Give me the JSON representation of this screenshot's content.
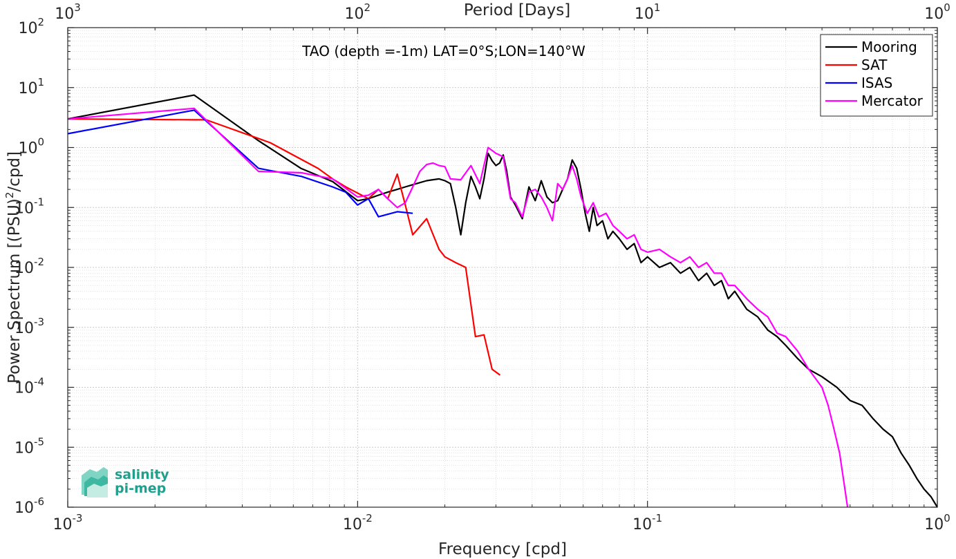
{
  "chart_data": {
    "type": "line",
    "xscale": "log",
    "yscale": "log",
    "xlim": [
      0.001,
      1
    ],
    "ylim": [
      1e-06,
      100
    ],
    "xlabel": "Frequency [cpd]",
    "ylabel": "Power Spectrum [(PSU)²/cpd]",
    "top_axis_label": "Period [Days]",
    "annotation": "TAO (depth =-1m) LAT=0°S;LON=140°W",
    "grid": true,
    "legend_position": "top-right",
    "x_ticks": [
      {
        "value": 0.001,
        "base": "10",
        "exp": "-3"
      },
      {
        "value": 0.01,
        "base": "10",
        "exp": "-2"
      },
      {
        "value": 0.1,
        "base": "10",
        "exp": "-1"
      },
      {
        "value": 1,
        "base": "10",
        "exp": "0"
      }
    ],
    "top_ticks": [
      {
        "value": 0.001,
        "base": "10",
        "exp": "3"
      },
      {
        "value": 0.01,
        "base": "10",
        "exp": "2"
      },
      {
        "value": 0.1,
        "base": "10",
        "exp": "1"
      },
      {
        "value": 1,
        "base": "10",
        "exp": "0"
      }
    ],
    "y_ticks": [
      {
        "value": 100,
        "base": "10",
        "exp": "2"
      },
      {
        "value": 10,
        "base": "10",
        "exp": "1"
      },
      {
        "value": 1,
        "base": "10",
        "exp": "0"
      },
      {
        "value": 0.1,
        "base": "10",
        "exp": "-1"
      },
      {
        "value": 0.01,
        "base": "10",
        "exp": "-2"
      },
      {
        "value": 0.001,
        "base": "10",
        "exp": "-3"
      },
      {
        "value": 0.0001,
        "base": "10",
        "exp": "-4"
      },
      {
        "value": 1e-05,
        "base": "10",
        "exp": "-5"
      },
      {
        "value": 1e-06,
        "base": "10",
        "exp": "-6"
      }
    ],
    "series": [
      {
        "name": "Mooring",
        "color": "#000000",
        "points": [
          [
            0.001,
            3.0
          ],
          [
            0.00273,
            7.5
          ],
          [
            0.00455,
            1.3
          ],
          [
            0.00637,
            0.45
          ],
          [
            0.0082,
            0.27
          ],
          [
            0.01,
            0.13
          ],
          [
            0.0109,
            0.14
          ],
          [
            0.0118,
            0.16
          ],
          [
            0.0127,
            0.18
          ],
          [
            0.0137,
            0.2
          ],
          [
            0.0146,
            0.22
          ],
          [
            0.0155,
            0.24
          ],
          [
            0.0164,
            0.26
          ],
          [
            0.0173,
            0.28
          ],
          [
            0.0182,
            0.29
          ],
          [
            0.0191,
            0.3
          ],
          [
            0.02,
            0.28
          ],
          [
            0.0209,
            0.25
          ],
          [
            0.0218,
            0.1
          ],
          [
            0.0227,
            0.035
          ],
          [
            0.0236,
            0.12
          ],
          [
            0.0246,
            0.33
          ],
          [
            0.0255,
            0.22
          ],
          [
            0.0264,
            0.14
          ],
          [
            0.0273,
            0.3
          ],
          [
            0.0282,
            0.8
          ],
          [
            0.0291,
            0.6
          ],
          [
            0.03,
            0.5
          ],
          [
            0.0309,
            0.55
          ],
          [
            0.0318,
            0.75
          ],
          [
            0.0327,
            0.4
          ],
          [
            0.0337,
            0.15
          ],
          [
            0.035,
            0.11
          ],
          [
            0.037,
            0.065
          ],
          [
            0.039,
            0.22
          ],
          [
            0.041,
            0.13
          ],
          [
            0.043,
            0.28
          ],
          [
            0.045,
            0.15
          ],
          [
            0.047,
            0.12
          ],
          [
            0.049,
            0.13
          ],
          [
            0.051,
            0.2
          ],
          [
            0.053,
            0.3
          ],
          [
            0.055,
            0.62
          ],
          [
            0.057,
            0.45
          ],
          [
            0.059,
            0.2
          ],
          [
            0.061,
            0.08
          ],
          [
            0.063,
            0.04
          ],
          [
            0.065,
            0.1
          ],
          [
            0.067,
            0.05
          ],
          [
            0.07,
            0.06
          ],
          [
            0.073,
            0.03
          ],
          [
            0.076,
            0.04
          ],
          [
            0.08,
            0.03
          ],
          [
            0.085,
            0.02
          ],
          [
            0.09,
            0.025
          ],
          [
            0.095,
            0.012
          ],
          [
            0.1,
            0.015
          ],
          [
            0.11,
            0.01
          ],
          [
            0.12,
            0.012
          ],
          [
            0.13,
            0.008
          ],
          [
            0.14,
            0.01
          ],
          [
            0.15,
            0.006
          ],
          [
            0.16,
            0.008
          ],
          [
            0.17,
            0.005
          ],
          [
            0.18,
            0.006
          ],
          [
            0.19,
            0.003
          ],
          [
            0.2,
            0.004
          ],
          [
            0.22,
            0.002
          ],
          [
            0.24,
            0.0015
          ],
          [
            0.26,
            0.0009
          ],
          [
            0.28,
            0.0007
          ],
          [
            0.3,
            0.0005
          ],
          [
            0.33,
            0.0003
          ],
          [
            0.36,
            0.0002
          ],
          [
            0.4,
            0.00015
          ],
          [
            0.45,
            0.0001
          ],
          [
            0.5,
            6e-05
          ],
          [
            0.55,
            5e-05
          ],
          [
            0.6,
            3e-05
          ],
          [
            0.65,
            2e-05
          ],
          [
            0.7,
            1.5e-05
          ],
          [
            0.75,
            8e-06
          ],
          [
            0.8,
            5e-06
          ],
          [
            0.85,
            3e-06
          ],
          [
            0.9,
            2e-06
          ],
          [
            0.95,
            1.5e-06
          ],
          [
            1.0,
            1e-06
          ]
        ]
      },
      {
        "name": "SAT",
        "color": "#ff0000",
        "points": [
          [
            0.001,
            3.0
          ],
          [
            0.00273,
            2.9
          ],
          [
            0.003,
            2.9
          ],
          [
            0.005,
            1.2
          ],
          [
            0.0073,
            0.45
          ],
          [
            0.0082,
            0.3
          ],
          [
            0.0091,
            0.22
          ],
          [
            0.0109,
            0.14
          ],
          [
            0.0118,
            0.2
          ],
          [
            0.0127,
            0.14
          ],
          [
            0.0137,
            0.36
          ],
          [
            0.0146,
            0.11
          ],
          [
            0.0155,
            0.035
          ],
          [
            0.0173,
            0.065
          ],
          [
            0.0191,
            0.02
          ],
          [
            0.02,
            0.015
          ],
          [
            0.0218,
            0.012
          ],
          [
            0.0236,
            0.01
          ],
          [
            0.0255,
            0.0007
          ],
          [
            0.0273,
            0.00075
          ],
          [
            0.0291,
            0.0002
          ],
          [
            0.031,
            0.00016
          ]
        ]
      },
      {
        "name": "ISAS",
        "color": "#0000ff",
        "points": [
          [
            0.001,
            1.7
          ],
          [
            0.00273,
            4.2
          ],
          [
            0.00455,
            0.45
          ],
          [
            0.0064,
            0.33
          ],
          [
            0.0082,
            0.22
          ],
          [
            0.0091,
            0.18
          ],
          [
            0.01,
            0.11
          ],
          [
            0.0109,
            0.14
          ],
          [
            0.0118,
            0.07
          ],
          [
            0.0137,
            0.085
          ],
          [
            0.0155,
            0.08
          ]
        ]
      },
      {
        "name": "Mercator",
        "color": "#ff00ff",
        "points": [
          [
            0.001,
            3.0
          ],
          [
            0.00273,
            4.5
          ],
          [
            0.00455,
            0.4
          ],
          [
            0.0064,
            0.38
          ],
          [
            0.0082,
            0.3
          ],
          [
            0.01,
            0.15
          ],
          [
            0.0109,
            0.16
          ],
          [
            0.0118,
            0.2
          ],
          [
            0.0127,
            0.14
          ],
          [
            0.0137,
            0.1
          ],
          [
            0.0146,
            0.12
          ],
          [
            0.0155,
            0.22
          ],
          [
            0.0164,
            0.4
          ],
          [
            0.0173,
            0.52
          ],
          [
            0.0182,
            0.55
          ],
          [
            0.0191,
            0.5
          ],
          [
            0.02,
            0.48
          ],
          [
            0.0209,
            0.3
          ],
          [
            0.0227,
            0.29
          ],
          [
            0.0246,
            0.5
          ],
          [
            0.0264,
            0.25
          ],
          [
            0.0282,
            1.0
          ],
          [
            0.03,
            0.8
          ],
          [
            0.0318,
            0.7
          ],
          [
            0.0337,
            0.14
          ],
          [
            0.035,
            0.12
          ],
          [
            0.037,
            0.07
          ],
          [
            0.039,
            0.18
          ],
          [
            0.041,
            0.2
          ],
          [
            0.043,
            0.15
          ],
          [
            0.045,
            0.1
          ],
          [
            0.047,
            0.06
          ],
          [
            0.049,
            0.25
          ],
          [
            0.051,
            0.2
          ],
          [
            0.053,
            0.3
          ],
          [
            0.055,
            0.5
          ],
          [
            0.057,
            0.3
          ],
          [
            0.059,
            0.15
          ],
          [
            0.062,
            0.08
          ],
          [
            0.065,
            0.12
          ],
          [
            0.068,
            0.07
          ],
          [
            0.072,
            0.08
          ],
          [
            0.076,
            0.05
          ],
          [
            0.08,
            0.04
          ],
          [
            0.085,
            0.03
          ],
          [
            0.09,
            0.035
          ],
          [
            0.095,
            0.02
          ],
          [
            0.1,
            0.018
          ],
          [
            0.11,
            0.02
          ],
          [
            0.12,
            0.015
          ],
          [
            0.13,
            0.012
          ],
          [
            0.14,
            0.015
          ],
          [
            0.15,
            0.01
          ],
          [
            0.16,
            0.012
          ],
          [
            0.17,
            0.008
          ],
          [
            0.18,
            0.008
          ],
          [
            0.19,
            0.005
          ],
          [
            0.2,
            0.005
          ],
          [
            0.22,
            0.003
          ],
          [
            0.24,
            0.002
          ],
          [
            0.26,
            0.0015
          ],
          [
            0.28,
            0.0008
          ],
          [
            0.3,
            0.0007
          ],
          [
            0.33,
            0.0004
          ],
          [
            0.36,
            0.0002
          ],
          [
            0.4,
            0.0001
          ],
          [
            0.42,
            5e-05
          ],
          [
            0.44,
            2e-05
          ],
          [
            0.46,
            8e-06
          ],
          [
            0.48,
            2e-06
          ],
          [
            0.49,
            1e-06
          ]
        ]
      }
    ]
  },
  "logo": {
    "line1": "salinity",
    "line2": "pi-mep",
    "color": "#1fa08c"
  }
}
